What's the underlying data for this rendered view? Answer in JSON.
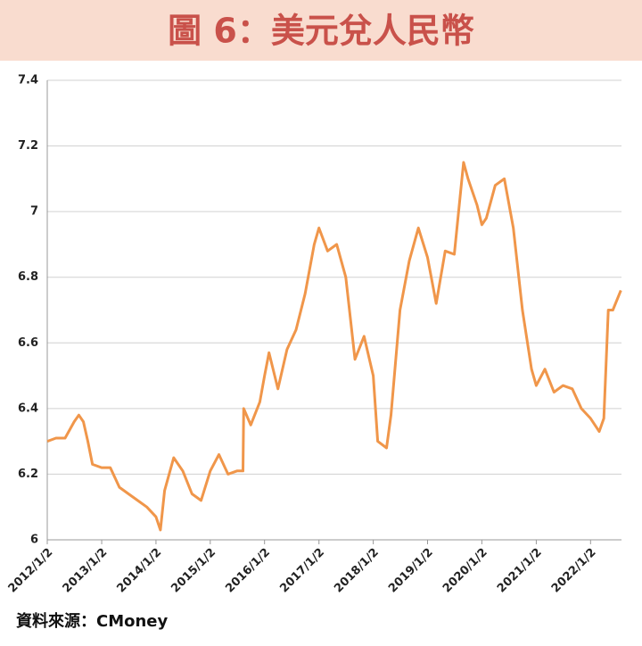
{
  "chart_data": {
    "type": "line",
    "title": "圖 6：美元兌人民幣",
    "source": "資料來源：CMoney",
    "x": [
      "2012/1/2",
      "2012/3/1",
      "2012/5/1",
      "2012/7/1",
      "2012/8/1",
      "2012/9/1",
      "2012/10/1",
      "2012/11/1",
      "2013/1/2",
      "2013/3/1",
      "2013/5/1",
      "2013/7/1",
      "2013/9/1",
      "2013/11/1",
      "2014/1/2",
      "2014/2/1",
      "2014/3/1",
      "2014/5/1",
      "2014/7/1",
      "2014/9/1",
      "2014/11/1",
      "2015/1/2",
      "2015/3/1",
      "2015/5/1",
      "2015/7/1",
      "2015/8/10",
      "2015/8/15",
      "2015/10/1",
      "2015/12/1",
      "2016/1/2",
      "2016/2/1",
      "2016/4/1",
      "2016/6/1",
      "2016/8/1",
      "2016/10/1",
      "2016/12/1",
      "2017/1/2",
      "2017/3/1",
      "2017/5/1",
      "2017/7/1",
      "2017/9/1",
      "2017/11/1",
      "2018/1/2",
      "2018/2/1",
      "2018/4/1",
      "2018/5/1",
      "2018/7/1",
      "2018/9/1",
      "2018/11/1",
      "2019/1/2",
      "2019/3/1",
      "2019/5/1",
      "2019/7/1",
      "2019/9/1",
      "2019/10/1",
      "2019/12/1",
      "2020/1/2",
      "2020/2/1",
      "2020/4/1",
      "2020/6/1",
      "2020/8/1",
      "2020/10/1",
      "2020/12/1",
      "2021/1/2",
      "2021/3/1",
      "2021/5/1",
      "2021/7/1",
      "2021/9/1",
      "2021/11/1",
      "2022/1/2",
      "2022/3/1",
      "2022/4/1",
      "2022/5/1",
      "2022/6/1",
      "2022/7/25"
    ],
    "series": [
      {
        "name": "USD/CNY",
        "color": "#f0964a",
        "values": [
          6.3,
          6.31,
          6.31,
          6.36,
          6.38,
          6.36,
          6.3,
          6.23,
          6.22,
          6.22,
          6.16,
          6.14,
          6.12,
          6.1,
          6.07,
          6.03,
          6.15,
          6.25,
          6.21,
          6.14,
          6.12,
          6.21,
          6.26,
          6.2,
          6.21,
          6.21,
          6.4,
          6.35,
          6.42,
          6.5,
          6.57,
          6.46,
          6.58,
          6.64,
          6.75,
          6.9,
          6.95,
          6.88,
          6.9,
          6.8,
          6.55,
          6.62,
          6.5,
          6.3,
          6.28,
          6.38,
          6.7,
          6.85,
          6.95,
          6.86,
          6.72,
          6.88,
          6.87,
          7.15,
          7.1,
          7.02,
          6.96,
          6.98,
          7.08,
          7.1,
          6.95,
          6.7,
          6.52,
          6.47,
          6.52,
          6.45,
          6.47,
          6.46,
          6.4,
          6.37,
          6.33,
          6.37,
          6.7,
          6.7,
          6.76
        ]
      }
    ],
    "xlim": [
      "2012/1/2",
      "2022/7/29"
    ],
    "xticks": [
      "2012/1/2",
      "2013/1/2",
      "2014/1/2",
      "2015/1/2",
      "2016/1/2",
      "2017/1/2",
      "2018/1/2",
      "2019/1/2",
      "2020/1/2",
      "2021/1/2",
      "2022/1/2"
    ],
    "ylim": [
      6,
      7.4
    ],
    "yticks": [
      6,
      6.2,
      6.4,
      6.6,
      6.8,
      7,
      7.2,
      7.4
    ],
    "grid": true
  }
}
